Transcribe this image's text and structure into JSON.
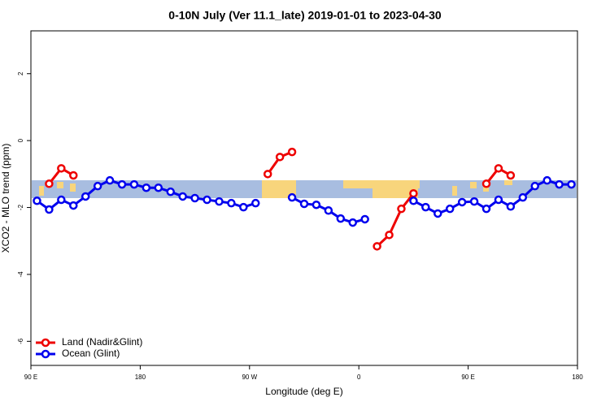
{
  "chart_data": {
    "type": "line",
    "title": "0-10N July (Ver 11.1_late)   2019-01-01 to 2023-04-30",
    "x_label": "Longitude (deg E)",
    "y_label": "XCO2 - MLO trend (ppm)",
    "xlim": [
      90,
      540
    ],
    "ylim": [
      -6.72,
      3.28
    ],
    "xticks": [
      {
        "value": 90,
        "label": "90 E"
      },
      {
        "value": 180,
        "label": "180"
      },
      {
        "value": 270,
        "label": "90 W"
      },
      {
        "value": 360,
        "label": "0"
      },
      {
        "value": 450,
        "label": "90 E"
      },
      {
        "value": 540,
        "label": "180"
      }
    ],
    "yticks": [
      2,
      0,
      -2,
      -4,
      -6
    ],
    "legend": "bottom-left",
    "series": [
      {
        "name": "Land (Nadir&Glint)",
        "color": "#ee0000",
        "x": [
          105,
          115,
          125,
          135,
          285,
          295,
          305,
          315,
          375,
          385,
          395,
          405,
          415,
          465,
          475,
          485
        ],
        "values": [
          -1.29,
          -0.83,
          -1.04,
          null,
          -1.0,
          -0.49,
          -0.34,
          null,
          -3.16,
          -2.82,
          -2.04,
          -1.58,
          null,
          -1.29,
          -0.83,
          -1.04
        ]
      },
      {
        "name": "Ocean (Glint)",
        "color": "#0000ee",
        "x": [
          95,
          105,
          115,
          125,
          135,
          145,
          155,
          165,
          175,
          185,
          195,
          205,
          215,
          225,
          235,
          245,
          255,
          265,
          275,
          285,
          295,
          305,
          315,
          325,
          335,
          345,
          355,
          365,
          375,
          385,
          395,
          405,
          415,
          425,
          435,
          445,
          455,
          465,
          475,
          485,
          495,
          505,
          515,
          525,
          535
        ],
        "values": [
          -1.8,
          -2.06,
          -1.77,
          -1.94,
          -1.67,
          -1.36,
          -1.19,
          -1.31,
          -1.31,
          -1.41,
          -1.41,
          -1.53,
          -1.67,
          -1.72,
          -1.77,
          -1.82,
          -1.87,
          -1.99,
          -1.87,
          null,
          null,
          -1.7,
          -1.89,
          -1.92,
          -2.09,
          -2.33,
          -2.45,
          -2.35,
          null,
          null,
          null,
          -1.8,
          -1.99,
          -2.18,
          -2.04,
          -1.84,
          -1.82,
          -2.04,
          -1.77,
          -1.97,
          -1.7,
          -1.36,
          -1.19,
          -1.31,
          -1.31
        ]
      }
    ]
  }
}
